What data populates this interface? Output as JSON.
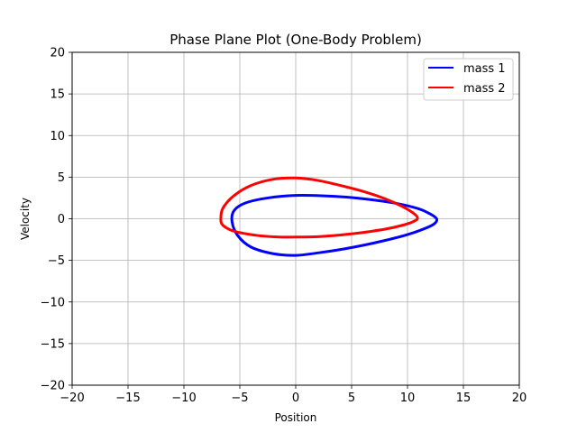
{
  "chart_data": {
    "type": "line",
    "title": "Phase Plane Plot (One-Body Problem)",
    "xlabel": "Position",
    "ylabel": "Velocity",
    "xlim": [
      -20,
      20
    ],
    "ylim": [
      -20,
      20
    ],
    "xticks": [
      -20,
      -15,
      -10,
      -5,
      0,
      5,
      10,
      15,
      20
    ],
    "yticks": [
      -20,
      -15,
      -10,
      -5,
      0,
      5,
      10,
      15,
      20
    ],
    "xtick_labels": [
      "−20",
      "−15",
      "−10",
      "−5",
      "0",
      "5",
      "10",
      "15",
      "20"
    ],
    "ytick_labels": [
      "−20",
      "−15",
      "−10",
      "−5",
      "0",
      "5",
      "10",
      "15",
      "20"
    ],
    "grid": true,
    "legend_position": "top-right",
    "series": [
      {
        "name": "mass 1",
        "color": "#0000ff",
        "x": [
          12.6,
          12.4,
          11.5,
          10.0,
          8.0,
          6.0,
          4.0,
          2.0,
          0.0,
          -2.0,
          -4.0,
          -5.2,
          -5.7,
          -5.5,
          -4.5,
          -2.5,
          0.0,
          2.5,
          5.0,
          7.0,
          9.0,
          11.0,
          12.0,
          12.6
        ],
        "y": [
          0.0,
          -0.6,
          -1.2,
          -1.9,
          -2.6,
          -3.2,
          -3.7,
          -4.1,
          -4.4,
          -4.2,
          -3.4,
          -2.0,
          -0.3,
          1.0,
          1.9,
          2.5,
          2.8,
          2.75,
          2.55,
          2.25,
          1.85,
          1.2,
          0.6,
          0.0
        ]
      },
      {
        "name": "mass 2",
        "color": "#ff0000",
        "x": [
          -6.7,
          -6.5,
          -5.5,
          -3.5,
          -1.5,
          0.0,
          2.0,
          4.0,
          6.0,
          8.0,
          9.5,
          10.5,
          10.9,
          10.5,
          9.5,
          8.0,
          6.0,
          4.0,
          2.0,
          0.0,
          -2.0,
          -4.0,
          -5.5,
          -6.5,
          -6.7
        ],
        "y": [
          0.0,
          -0.8,
          -1.5,
          -2.0,
          -2.2,
          -2.2,
          -2.15,
          -1.95,
          -1.65,
          -1.25,
          -0.8,
          -0.35,
          0.1,
          0.7,
          1.5,
          2.4,
          3.3,
          4.0,
          4.6,
          4.9,
          4.75,
          4.0,
          2.8,
          1.3,
          0.0
        ]
      }
    ]
  }
}
